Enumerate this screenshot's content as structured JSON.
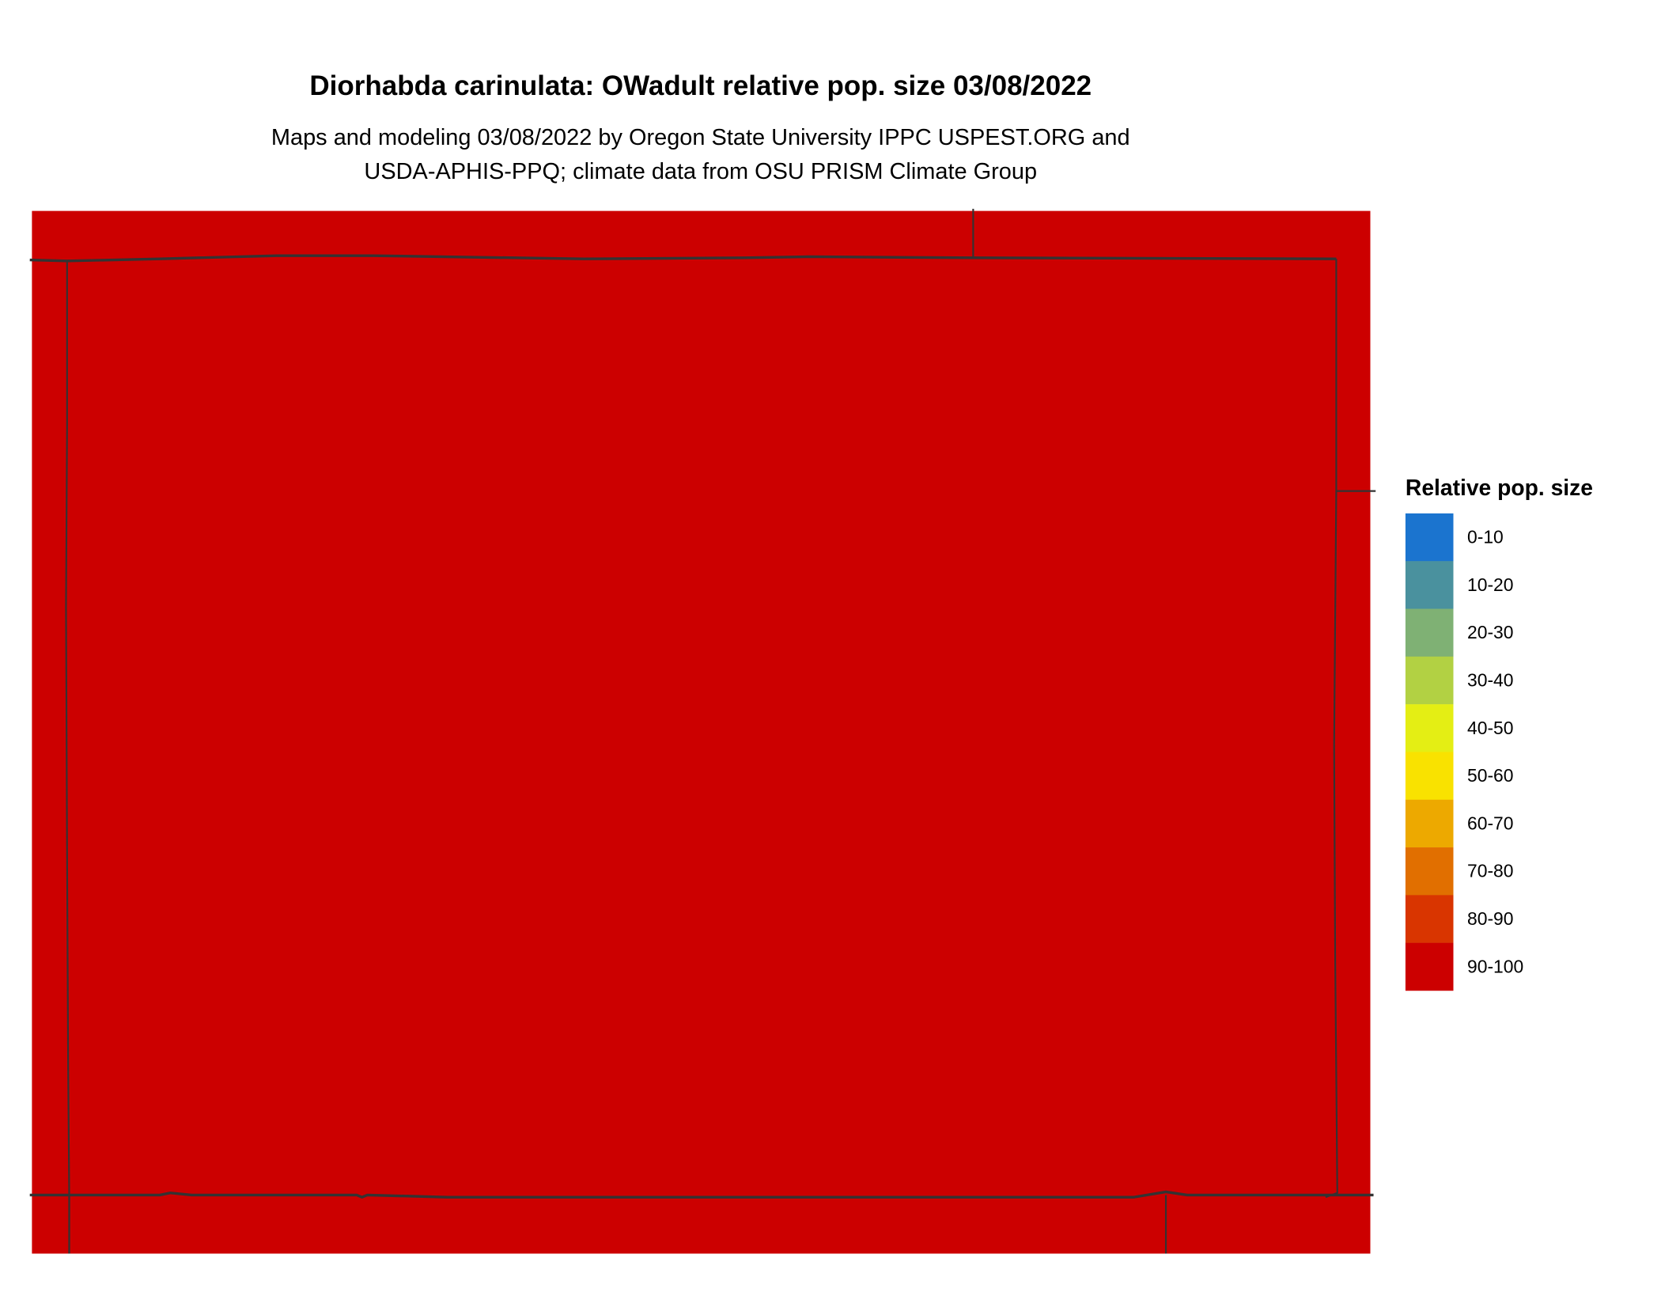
{
  "title": "Diorhabda carinulata: OWadult relative pop. size 03/08/2022",
  "subtitle_lines": [
    "Maps and modeling 03/08/2022 by Oregon State University IPPC USPEST.ORG and",
    "USDA-APHIS-PPQ; climate data from OSU PRISM Climate Group"
  ],
  "map": {
    "fill_color": "#CC0000",
    "fill_class": "90-100",
    "boundary_color": "#333333"
  },
  "legend": {
    "title": "Relative pop. size",
    "items": [
      {
        "label": "0-10",
        "color": "#1B74CF"
      },
      {
        "label": "10-20",
        "color": "#4A919E"
      },
      {
        "label": "20-30",
        "color": "#7FB174"
      },
      {
        "label": "30-40",
        "color": "#B2D143"
      },
      {
        "label": "40-50",
        "color": "#E4EE14"
      },
      {
        "label": "50-60",
        "color": "#F9E200"
      },
      {
        "label": "60-70",
        "color": "#EDA900"
      },
      {
        "label": "70-80",
        "color": "#E16F00"
      },
      {
        "label": "80-90",
        "color": "#D93500"
      },
      {
        "label": "90-100",
        "color": "#CC0000"
      }
    ]
  }
}
